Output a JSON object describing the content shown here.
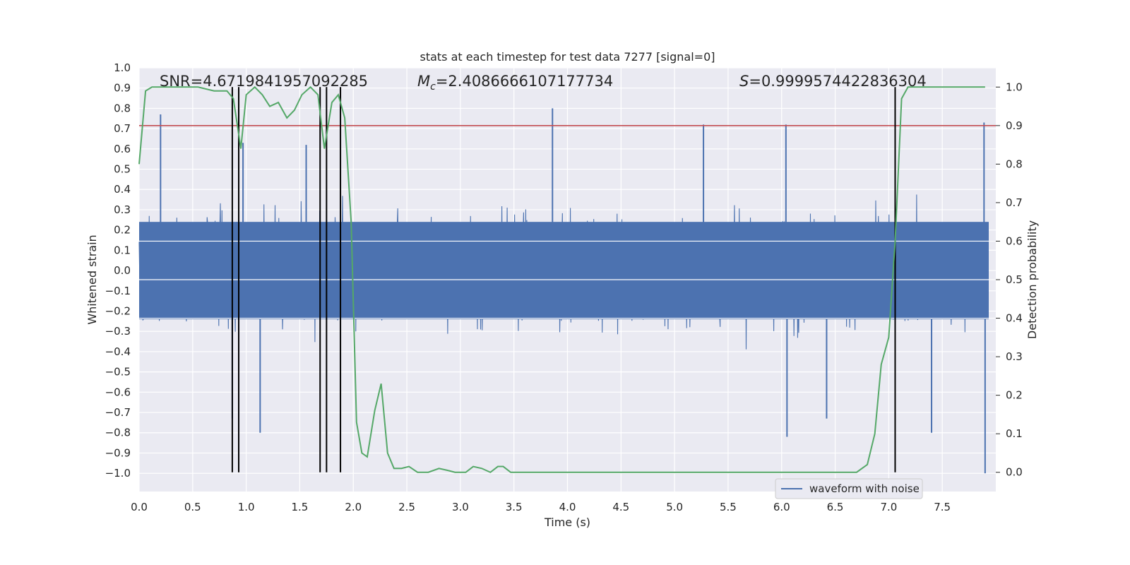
{
  "chart_data": {
    "type": "line",
    "title": "stats at each timestep for test data 7277 [signal=0]",
    "xlabel": "Time (s)",
    "ylabel_left": "Whitened strain",
    "ylabel_right": "Detection probability",
    "xlim": [
      0.0,
      8.0
    ],
    "ylim_left": [
      -1.09,
      1.0
    ],
    "ylim_right": [
      -0.05,
      1.05
    ],
    "x_ticks": [
      "0.0",
      "0.5",
      "1.0",
      "1.5",
      "2.0",
      "2.5",
      "3.0",
      "3.5",
      "4.0",
      "4.5",
      "5.0",
      "5.5",
      "6.0",
      "6.5",
      "7.0",
      "7.5"
    ],
    "x_tick_values": [
      0.0,
      0.5,
      1.0,
      1.5,
      2.0,
      2.5,
      3.0,
      3.5,
      4.0,
      4.5,
      5.0,
      5.5,
      6.0,
      6.5,
      7.0,
      7.5
    ],
    "y_left_ticks": [
      "1.0",
      "0.9",
      "0.8",
      "0.7",
      "0.6",
      "0.5",
      "0.4",
      "0.3",
      "0.2",
      "0.1",
      "0.0",
      "−0.1",
      "−0.2",
      "−0.3",
      "−0.4",
      "−0.5",
      "−0.6",
      "−0.7",
      "−0.8",
      "−0.9",
      "−1.0"
    ],
    "y_left_tick_values": [
      1.0,
      0.9,
      0.8,
      0.7,
      0.6,
      0.5,
      0.4,
      0.3,
      0.2,
      0.1,
      0.0,
      -0.1,
      -0.2,
      -0.3,
      -0.4,
      -0.5,
      -0.6,
      -0.7,
      -0.8,
      -0.9,
      -1.0
    ],
    "y_right_ticks": [
      "1.0",
      "0.9",
      "0.8",
      "0.7",
      "0.6",
      "0.5",
      "0.4",
      "0.3",
      "0.2",
      "0.1",
      "0.0"
    ],
    "y_right_tick_values": [
      1.0,
      0.9,
      0.8,
      0.7,
      0.6,
      0.5,
      0.4,
      0.3,
      0.2,
      0.1,
      0.0
    ],
    "grid": true,
    "legend_placement": "lower-right",
    "annotations": [
      {
        "key": "snr",
        "label": "SNR=4.6719841957092285"
      },
      {
        "key": "mc",
        "sym": "M",
        "sub": "c",
        "label": "=2.4086666107177734"
      },
      {
        "key": "s",
        "sym": "S",
        "label": "=0.9999574422836304"
      }
    ],
    "series": [
      {
        "name": "waveform with noise",
        "axis": "left",
        "color": "#4c72b0",
        "kind": "noisy-waveform",
        "typical_envelope": 0.32,
        "peaks": [
          [
            0.2,
            0.77
          ],
          [
            0.87,
            -0.73
          ],
          [
            0.97,
            0.63
          ],
          [
            1.13,
            -0.8
          ],
          [
            1.56,
            0.62
          ],
          [
            3.86,
            0.8
          ],
          [
            5.27,
            0.72
          ],
          [
            6.04,
            0.72
          ],
          [
            6.05,
            -0.82
          ],
          [
            6.42,
            -0.73
          ],
          [
            7.4,
            -0.8
          ],
          [
            7.89,
            0.73
          ],
          [
            7.9,
            -1.0
          ]
        ]
      },
      {
        "name": "",
        "axis": "right",
        "color": "#55a868",
        "x": [
          0.0,
          0.06,
          0.12,
          0.25,
          0.4,
          0.55,
          0.7,
          0.82,
          0.88,
          0.95,
          1.0,
          1.08,
          1.15,
          1.22,
          1.3,
          1.38,
          1.45,
          1.52,
          1.6,
          1.67,
          1.73,
          1.8,
          1.86,
          1.92,
          1.98,
          2.03,
          2.08,
          2.13,
          2.2,
          2.26,
          2.32,
          2.38,
          2.45,
          2.52,
          2.6,
          2.7,
          2.8,
          2.88,
          2.95,
          3.05,
          3.12,
          3.2,
          3.28,
          3.35,
          3.4,
          3.47,
          3.52,
          3.6,
          3.8,
          4.0,
          4.2,
          4.4,
          4.6,
          4.75,
          4.9,
          5.1,
          5.3,
          5.6,
          5.9,
          6.2,
          6.5,
          6.7,
          6.8,
          6.87,
          6.93,
          7.0,
          7.06,
          7.12,
          7.18,
          7.25,
          7.4,
          7.6,
          7.9
        ],
        "values": [
          0.8,
          0.99,
          1.0,
          1.0,
          1.0,
          1.0,
          0.99,
          0.99,
          0.97,
          0.84,
          0.98,
          1.0,
          0.98,
          0.95,
          0.96,
          0.92,
          0.94,
          0.98,
          1.0,
          0.98,
          0.84,
          0.96,
          0.98,
          0.92,
          0.65,
          0.13,
          0.05,
          0.04,
          0.16,
          0.23,
          0.05,
          0.01,
          0.01,
          0.015,
          0.0,
          0.0,
          0.01,
          0.005,
          0.0,
          0.0,
          0.015,
          0.01,
          0.0,
          0.015,
          0.015,
          0.0,
          0.0,
          0.0,
          0.0,
          0.0,
          0.0,
          0.0,
          0.0,
          0.0,
          0.0,
          0.0,
          0.0,
          0.0,
          0.0,
          0.0,
          0.0,
          0.0,
          0.02,
          0.1,
          0.28,
          0.35,
          0.6,
          0.97,
          1.0,
          1.0,
          1.0,
          1.0,
          1.0
        ]
      }
    ],
    "threshold": {
      "axis": "right",
      "value": 0.9,
      "color": "#c44e52"
    },
    "vertical_markers": {
      "color": "#000000",
      "x": [
        0.87,
        0.93,
        1.69,
        1.75,
        1.88,
        7.06
      ]
    }
  }
}
